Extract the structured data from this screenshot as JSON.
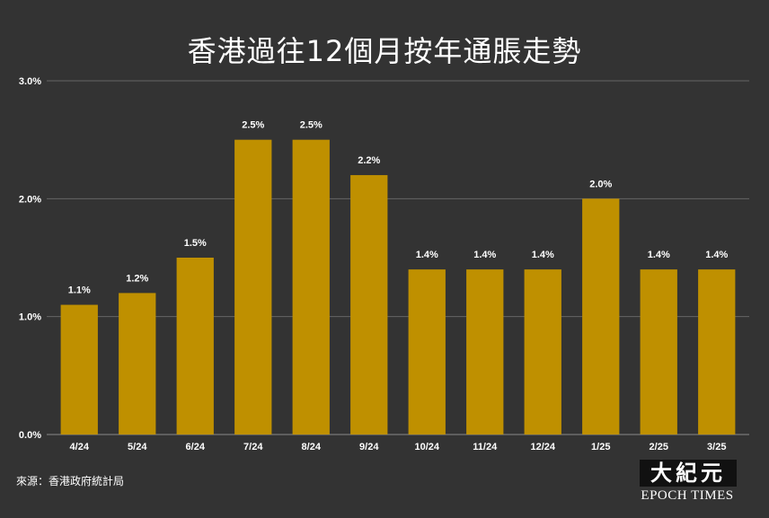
{
  "colors": {
    "background": "#333333",
    "bar": "#bf9000",
    "grid": "#666666",
    "text": "#ffffff"
  },
  "chart_data": {
    "type": "bar",
    "title": "香港過往12個月按年通脹走勢",
    "categories": [
      "4/24",
      "5/24",
      "6/24",
      "7/24",
      "8/24",
      "9/24",
      "10/24",
      "11/24",
      "12/24",
      "1/25",
      "2/25",
      "3/25"
    ],
    "values": [
      1.1,
      1.2,
      1.5,
      2.5,
      2.5,
      2.2,
      1.4,
      1.4,
      1.4,
      2.0,
      1.4,
      1.4
    ],
    "data_labels": [
      "1.1%",
      "1.2%",
      "1.5%",
      "2.5%",
      "2.5%",
      "2.2%",
      "1.4%",
      "1.4%",
      "1.4%",
      "2.0%",
      "1.4%",
      "1.4%"
    ],
    "ylim": [
      0,
      3
    ],
    "yticks": [
      0,
      1,
      2,
      3
    ],
    "ytick_labels": [
      "0.0%",
      "1.0%",
      "2.0%",
      "3.0%"
    ],
    "grid": true,
    "legend": "none"
  },
  "source": "來源：香港政府統計局",
  "logo": {
    "cn": "大紀元",
    "en": "EPOCH TIMES"
  }
}
